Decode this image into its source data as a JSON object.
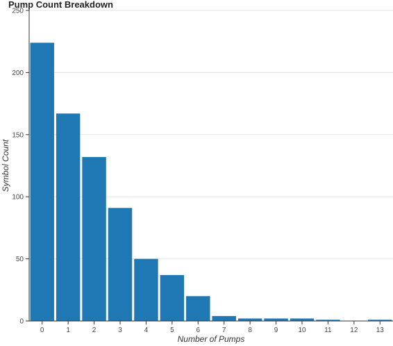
{
  "chart_data": {
    "type": "bar",
    "title": "Pump Count Breakdown",
    "xlabel": "Number of Pumps",
    "ylabel": "Symbol Count",
    "categories": [
      "0",
      "1",
      "2",
      "3",
      "4",
      "5",
      "6",
      "7",
      "8",
      "9",
      "10",
      "11",
      "12",
      "13"
    ],
    "values": [
      224,
      167,
      132,
      91,
      50,
      37,
      20,
      4,
      2,
      2,
      2,
      1,
      0,
      1
    ],
    "ylim": [
      0,
      250
    ],
    "yticks": [
      0,
      50,
      100,
      150,
      200,
      250
    ],
    "grid": true,
    "bar_color": "#1f77b4"
  }
}
